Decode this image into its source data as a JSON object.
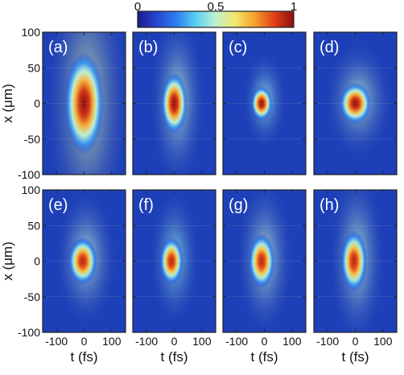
{
  "colors": {
    "background": "#1d3fb8",
    "colormap": [
      "#1a1a8c",
      "#2846d2",
      "#2f7ef0",
      "#5ad2f0",
      "#bff0d0",
      "#f3e86a",
      "#f5a02d",
      "#e04018",
      "#8b0f0f"
    ]
  },
  "chart_data": {
    "type": "heatmap",
    "title": "",
    "xlabel": "t (fs)",
    "ylabel": "x (μm)",
    "xlim": [
      -150,
      150
    ],
    "ylim": [
      -100,
      100
    ],
    "x_ticks": [
      -100,
      0,
      100
    ],
    "x_tick_labels": [
      "-100",
      "0",
      "100"
    ],
    "y_ticks": [
      -100,
      -50,
      0,
      50,
      100
    ],
    "y_tick_labels": [
      "-100",
      "-50",
      "0",
      "50",
      "100"
    ],
    "colorbar": {
      "range": [
        0,
        1
      ],
      "ticks": [
        0,
        0.5,
        1
      ],
      "tick_labels": [
        "0",
        "0.5",
        "1"
      ],
      "placement": "top"
    },
    "layout": {
      "rows": 2,
      "cols": 4
    },
    "panels": [
      {
        "label": "(a)",
        "peak_t": 0,
        "peak_x": 0,
        "width_t": 30,
        "width_x": 30,
        "peak": 1.0,
        "halo": 0.35
      },
      {
        "label": "(b)",
        "peak_t": 0,
        "peak_x": 0,
        "width_t": 20,
        "width_x": 18,
        "peak": 1.0,
        "halo": 0.3
      },
      {
        "label": "(c)",
        "peak_t": -10,
        "peak_x": 0,
        "width_t": 16,
        "width_x": 10,
        "peak": 1.0,
        "halo": 0.25
      },
      {
        "label": "(d)",
        "peak_t": 0,
        "peak_x": 0,
        "width_t": 24,
        "width_x": 12,
        "peak": 1.0,
        "halo": 0.3
      },
      {
        "label": "(e)",
        "peak_t": -5,
        "peak_x": 0,
        "width_t": 22,
        "width_x": 14,
        "peak": 0.95,
        "halo": 0.3
      },
      {
        "label": "(f)",
        "peak_t": -10,
        "peak_x": 0,
        "width_t": 18,
        "width_x": 14,
        "peak": 0.95,
        "halo": 0.25
      },
      {
        "label": "(g)",
        "peak_t": -10,
        "peak_x": 0,
        "width_t": 20,
        "width_x": 16,
        "peak": 0.95,
        "halo": 0.3
      },
      {
        "label": "(h)",
        "peak_t": -5,
        "peak_x": 0,
        "width_t": 20,
        "width_x": 18,
        "peak": 0.95,
        "halo": 0.3
      }
    ]
  }
}
